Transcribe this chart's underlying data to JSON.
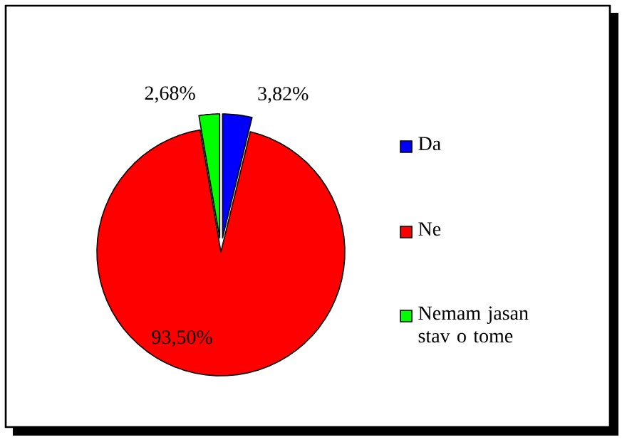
{
  "chart_data": {
    "type": "pie",
    "categories": [
      "Da",
      "Ne",
      "Nemam jasan stav o tome"
    ],
    "values": [
      3.82,
      93.5,
      2.68
    ],
    "colors": [
      "#0000ff",
      "#ff0000",
      "#00ff00"
    ],
    "value_labels": [
      "3,82%",
      "93,50%",
      "2,68%"
    ],
    "legend": "right"
  }
}
